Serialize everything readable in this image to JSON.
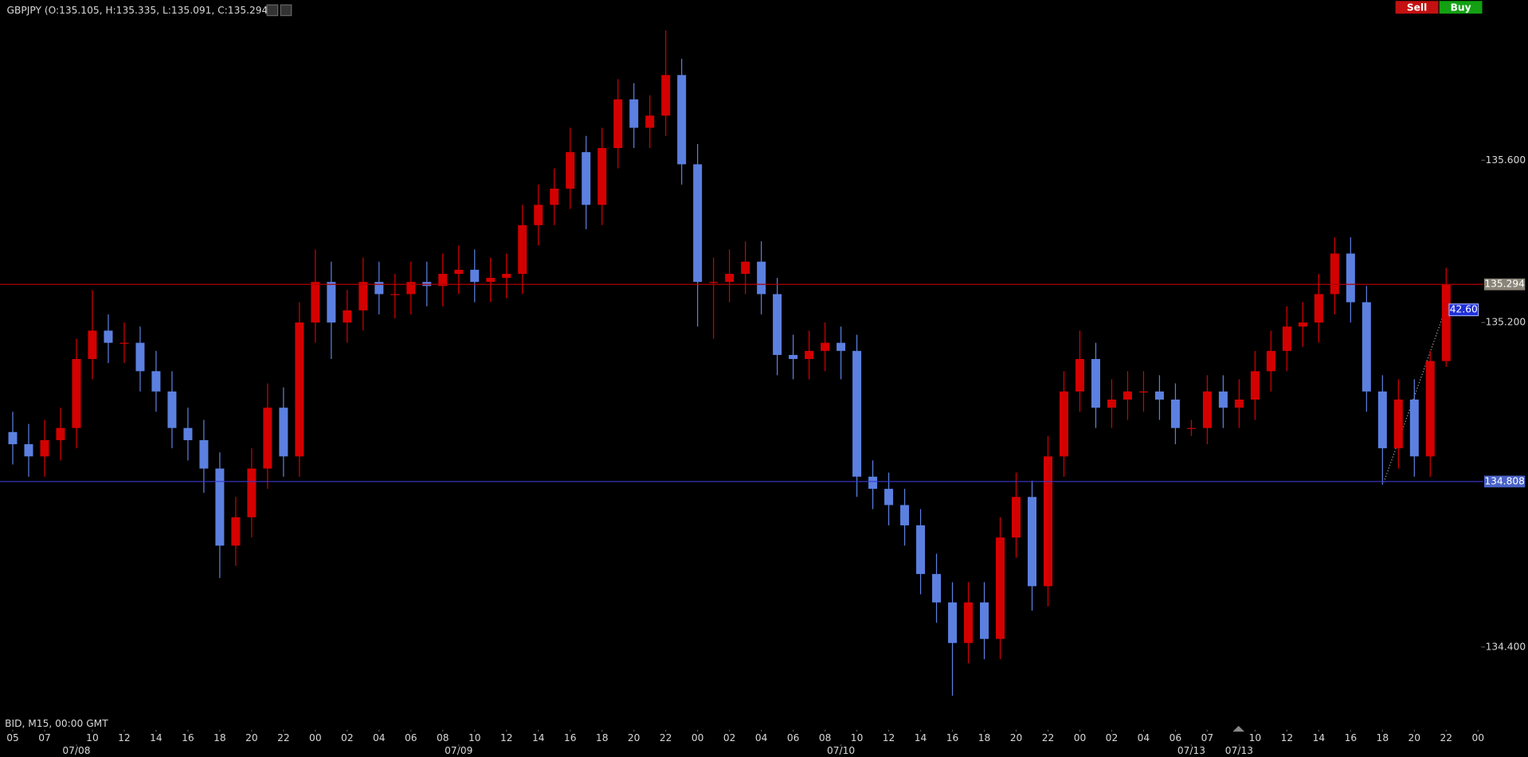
{
  "chart_data": {
    "type": "candlestick",
    "title": "GBPJPY (O:135.105, H:135.335, L:135.091, C:135.294)",
    "footer": "BID, M15, 00:00 GMT",
    "buttons": [
      "Sell",
      "Buy"
    ],
    "annotation": "42.60",
    "up_color": "#d40000",
    "down_color": "#5c80e0",
    "x": [
      0,
      1,
      2,
      3,
      4,
      5,
      6,
      7,
      8,
      9,
      10,
      11,
      12,
      13,
      14,
      15,
      16,
      17,
      18,
      19,
      20,
      21,
      22,
      23,
      24,
      25,
      26,
      27,
      28,
      29,
      30,
      31,
      32,
      33,
      34,
      35,
      36,
      37,
      38,
      39,
      40,
      41,
      42,
      43,
      44,
      45,
      46,
      47,
      48,
      49,
      50,
      51,
      52,
      53,
      54,
      55,
      56,
      57,
      58,
      59,
      60,
      61,
      62,
      63,
      64,
      65,
      66,
      67,
      68,
      69,
      70,
      71,
      72,
      73,
      74,
      75,
      76,
      77,
      78,
      79,
      80,
      81,
      82,
      83,
      84,
      85,
      86,
      87,
      88,
      89,
      90
    ],
    "open": [
      134.93,
      134.9,
      134.87,
      134.91,
      134.94,
      135.11,
      135.18,
      135.15,
      135.15,
      135.08,
      135.03,
      134.94,
      134.91,
      134.84,
      134.65,
      134.72,
      134.84,
      134.99,
      134.87,
      135.2,
      135.3,
      135.2,
      135.23,
      135.3,
      135.27,
      135.27,
      135.3,
      135.29,
      135.32,
      135.33,
      135.3,
      135.31,
      135.32,
      135.44,
      135.49,
      135.53,
      135.62,
      135.49,
      135.63,
      135.75,
      135.68,
      135.71,
      135.81,
      135.59,
      135.3,
      135.3,
      135.32,
      135.35,
      135.27,
      135.12,
      135.11,
      135.13,
      135.15,
      135.13,
      134.82,
      134.79,
      134.75,
      134.7,
      134.58,
      134.51,
      134.41,
      134.51,
      134.42,
      134.67,
      134.77,
      134.55,
      134.87,
      135.03,
      135.11,
      134.99,
      135.01,
      135.03,
      135.03,
      135.01,
      134.94,
      134.94,
      135.03,
      134.99,
      135.01,
      135.08,
      135.13,
      135.19,
      135.2,
      135.27,
      135.37,
      135.25,
      135.03,
      134.89,
      135.01,
      134.87,
      135.105
    ],
    "high": [
      134.98,
      134.95,
      134.96,
      134.99,
      135.16,
      135.28,
      135.22,
      135.2,
      135.19,
      135.13,
      135.08,
      134.99,
      134.96,
      134.88,
      134.77,
      134.89,
      135.05,
      135.04,
      135.25,
      135.38,
      135.35,
      135.28,
      135.36,
      135.35,
      135.32,
      135.35,
      135.35,
      135.37,
      135.39,
      135.38,
      135.36,
      135.37,
      135.49,
      135.54,
      135.58,
      135.68,
      135.66,
      135.68,
      135.8,
      135.79,
      135.76,
      135.92,
      135.85,
      135.64,
      135.36,
      135.38,
      135.4,
      135.4,
      135.31,
      135.17,
      135.18,
      135.2,
      135.19,
      135.17,
      134.86,
      134.83,
      134.79,
      134.74,
      134.63,
      134.56,
      134.56,
      134.56,
      134.72,
      134.83,
      134.81,
      134.92,
      135.08,
      135.18,
      135.15,
      135.06,
      135.08,
      135.08,
      135.07,
      135.05,
      134.96,
      135.07,
      135.07,
      135.06,
      135.13,
      135.18,
      135.24,
      135.25,
      135.32,
      135.41,
      135.41,
      135.29,
      135.07,
      135.06,
      135.06,
      135.13,
      135.335
    ],
    "low": [
      134.85,
      134.82,
      134.82,
      134.86,
      134.89,
      135.06,
      135.1,
      135.1,
      135.03,
      134.98,
      134.89,
      134.86,
      134.78,
      134.57,
      134.6,
      134.67,
      134.79,
      134.82,
      134.82,
      135.15,
      135.11,
      135.15,
      135.18,
      135.22,
      135.21,
      135.22,
      135.24,
      135.24,
      135.27,
      135.25,
      135.25,
      135.26,
      135.27,
      135.39,
      135.44,
      135.48,
      135.43,
      135.44,
      135.58,
      135.63,
      135.63,
      135.66,
      135.54,
      135.19,
      135.16,
      135.25,
      135.27,
      135.22,
      135.07,
      135.06,
      135.06,
      135.08,
      135.06,
      134.77,
      134.74,
      134.7,
      134.65,
      134.53,
      134.46,
      134.28,
      134.36,
      134.37,
      134.37,
      134.62,
      134.49,
      134.5,
      134.82,
      134.98,
      134.94,
      134.94,
      134.96,
      134.98,
      134.96,
      134.9,
      134.92,
      134.9,
      134.94,
      134.94,
      134.96,
      135.03,
      135.08,
      135.14,
      135.15,
      135.22,
      135.2,
      134.98,
      134.8,
      134.84,
      134.82,
      134.82,
      135.091
    ],
    "close": [
      134.9,
      134.87,
      134.91,
      134.94,
      135.11,
      135.18,
      135.15,
      135.15,
      135.08,
      135.03,
      134.94,
      134.91,
      134.84,
      134.65,
      134.72,
      134.84,
      134.99,
      134.87,
      135.2,
      135.3,
      135.2,
      135.23,
      135.3,
      135.27,
      135.27,
      135.3,
      135.29,
      135.32,
      135.33,
      135.3,
      135.31,
      135.32,
      135.44,
      135.49,
      135.53,
      135.62,
      135.49,
      135.63,
      135.75,
      135.68,
      135.71,
      135.81,
      135.59,
      135.3,
      135.3,
      135.32,
      135.35,
      135.27,
      135.12,
      135.11,
      135.13,
      135.15,
      135.13,
      134.82,
      134.79,
      134.75,
      134.7,
      134.58,
      134.51,
      134.41,
      134.51,
      134.42,
      134.67,
      134.77,
      134.55,
      134.87,
      135.03,
      135.11,
      134.99,
      135.01,
      135.03,
      135.03,
      135.01,
      134.94,
      134.94,
      135.03,
      134.99,
      135.01,
      135.08,
      135.13,
      135.19,
      135.2,
      135.27,
      135.37,
      135.25,
      135.03,
      134.89,
      135.01,
      134.87,
      135.105,
      135.294
    ],
    "xlim": [
      -0.8,
      92.2
    ],
    "xticks": [
      {
        "value": 0,
        "label": "05"
      },
      {
        "value": 2,
        "label": "07"
      },
      {
        "value": 5,
        "label": "10"
      },
      {
        "value": 7,
        "label": "12"
      },
      {
        "value": 9,
        "label": "14"
      },
      {
        "value": 11,
        "label": "16"
      },
      {
        "value": 13,
        "label": "18"
      },
      {
        "value": 15,
        "label": "20"
      },
      {
        "value": 17,
        "label": "22"
      },
      {
        "value": 19,
        "label": "00"
      },
      {
        "value": 21,
        "label": "02"
      },
      {
        "value": 23,
        "label": "04"
      },
      {
        "value": 25,
        "label": "06"
      },
      {
        "value": 27,
        "label": "08"
      },
      {
        "value": 29,
        "label": "10"
      },
      {
        "value": 31,
        "label": "12"
      },
      {
        "value": 33,
        "label": "14"
      },
      {
        "value": 35,
        "label": "16"
      },
      {
        "value": 37,
        "label": "18"
      },
      {
        "value": 39,
        "label": "20"
      },
      {
        "value": 41,
        "label": "22"
      },
      {
        "value": 43,
        "label": "00"
      },
      {
        "value": 45,
        "label": "02"
      },
      {
        "value": 47,
        "label": "04"
      },
      {
        "value": 49,
        "label": "06"
      },
      {
        "value": 51,
        "label": "08"
      },
      {
        "value": 53,
        "label": "10"
      },
      {
        "value": 55,
        "label": "12"
      },
      {
        "value": 57,
        "label": "14"
      },
      {
        "value": 59,
        "label": "16"
      },
      {
        "value": 61,
        "label": "18"
      },
      {
        "value": 63,
        "label": "20"
      },
      {
        "value": 65,
        "label": "22"
      },
      {
        "value": 67,
        "label": "00"
      },
      {
        "value": 69,
        "label": "02"
      },
      {
        "value": 71,
        "label": "04"
      },
      {
        "value": 73,
        "label": "06"
      },
      {
        "value": 75,
        "label": "07"
      },
      {
        "value": 78,
        "label": "10"
      },
      {
        "value": 80,
        "label": "12"
      },
      {
        "value": 82,
        "label": "14"
      },
      {
        "value": 84,
        "label": "16"
      },
      {
        "value": 86,
        "label": "18"
      },
      {
        "value": 88,
        "label": "20"
      },
      {
        "value": 90,
        "label": "22"
      },
      {
        "value": 92,
        "label": "00"
      }
    ],
    "date_ticks": [
      {
        "value": 4,
        "label": "07/08"
      },
      {
        "value": 28,
        "label": "07/09"
      },
      {
        "value": 52,
        "label": "07/10"
      },
      {
        "value": 74,
        "label": "07/13"
      },
      {
        "value": 77,
        "label": "07/13"
      }
    ],
    "ylim": [
      134.225,
      135.995
    ],
    "yticks": [
      {
        "value": 134.4,
        "label": "134.400"
      },
      {
        "value": 135.2,
        "label": "135.200"
      },
      {
        "value": 135.6,
        "label": "135.600"
      }
    ],
    "price_lines": [
      {
        "value": 135.294,
        "color": "#b00000",
        "label_color": "#8a8578"
      },
      {
        "value": 134.808,
        "color": "#3a3ad0",
        "label_color": "#4a63c8"
      }
    ]
  }
}
